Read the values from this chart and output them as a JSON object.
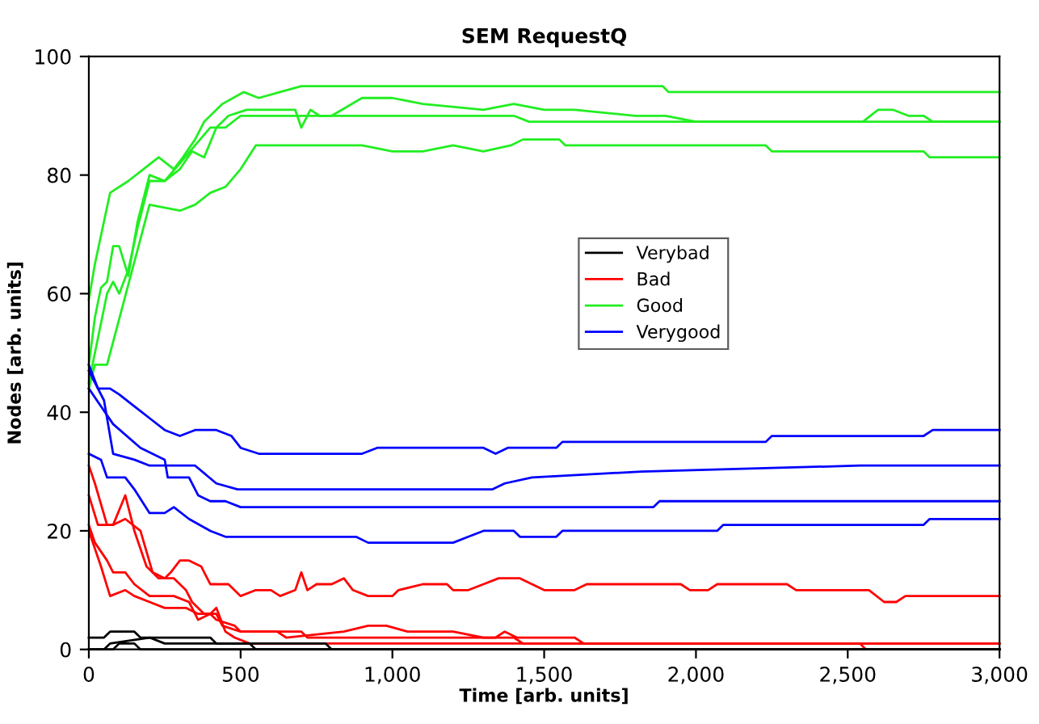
{
  "chart_data": {
    "type": "line",
    "title": "SEM RequestQ",
    "xlabel": "Time [arb. units]",
    "ylabel": "Nodes [arb. units]",
    "xlim": [
      0,
      3000
    ],
    "ylim": [
      0,
      100
    ],
    "xticks": [
      0,
      500,
      {
        "value": 1000,
        "label": "1,000"
      },
      {
        "value": 1500,
        "label": "1,500"
      },
      {
        "value": 2000,
        "label": "2,000"
      },
      {
        "value": 2500,
        "label": "2,500"
      },
      {
        "value": 3000,
        "label": "3,000"
      }
    ],
    "yticks": [
      0,
      20,
      40,
      60,
      80,
      100
    ],
    "grid": false,
    "legend": "center",
    "marker": "none",
    "line_style": "solid",
    "series": [
      {
        "name": "Verybad",
        "color": "#000000",
        "x": [
          0,
          50,
          70,
          150,
          170,
          400,
          420,
          530,
          550,
          3000
        ],
        "values": [
          2,
          2,
          3,
          3,
          2,
          2,
          1,
          1,
          0,
          0
        ]
      },
      {
        "color": "#000000",
        "x": [
          0,
          50,
          70,
          200,
          250,
          780,
          800,
          3000
        ],
        "values": [
          0,
          0,
          1,
          2,
          1,
          1,
          0,
          0
        ]
      },
      {
        "color": "#000000",
        "x": [
          0,
          80,
          100,
          150,
          170,
          3000
        ],
        "values": [
          0,
          0,
          1,
          1,
          0,
          0
        ]
      },
      {
        "name": "Bad",
        "color": "#ff0000",
        "x": [
          0,
          20,
          60,
          80,
          120,
          170,
          210,
          250,
          270,
          300,
          330,
          370,
          400,
          460,
          500,
          550,
          600,
          630,
          680,
          700,
          720,
          750,
          800,
          840,
          870,
          920,
          1000,
          1020,
          1100,
          1180,
          1200,
          1250,
          1300,
          1350,
          1420,
          1460,
          1500,
          1600,
          1640,
          1950,
          1980,
          2040,
          2070,
          2300,
          2330,
          2570,
          2620,
          2660,
          2690,
          3000
        ],
        "values": [
          31,
          28,
          21,
          21,
          22,
          20,
          13,
          12,
          13,
          15,
          15,
          14,
          11,
          11,
          9,
          10,
          10,
          9,
          10,
          13,
          10,
          11,
          11,
          12,
          10,
          9,
          9,
          10,
          11,
          11,
          10,
          10,
          11,
          12,
          12,
          11,
          10,
          10,
          11,
          11,
          10,
          10,
          11,
          11,
          10,
          10,
          8,
          8,
          9,
          9
        ]
      },
      {
        "color": "#ff0000",
        "x": [
          0,
          30,
          80,
          120,
          150,
          190,
          230,
          280,
          320,
          340,
          380,
          420,
          440,
          500,
          620,
          650,
          840,
          920,
          980,
          1050,
          1200,
          1300,
          1340,
          1370,
          1410,
          1600,
          1630,
          3000
        ],
        "values": [
          26,
          21,
          21,
          26,
          20,
          14,
          12,
          12,
          10,
          8,
          6,
          6,
          4,
          3,
          3,
          2,
          3,
          4,
          4,
          3,
          3,
          2,
          2,
          3,
          2,
          2,
          1,
          1
        ]
      },
      {
        "color": "#ff0000",
        "x": [
          0,
          20,
          60,
          80,
          120,
          150,
          200,
          280,
          330,
          360,
          400,
          420,
          450,
          480,
          530,
          2540,
          2560,
          3000
        ],
        "values": [
          21,
          18,
          15,
          13,
          13,
          11,
          9,
          9,
          8,
          5,
          6,
          7,
          3,
          2,
          1,
          1,
          0,
          0
        ]
      },
      {
        "color": "#ff0000",
        "x": [
          0,
          40,
          70,
          120,
          150,
          200,
          250,
          320,
          360,
          400,
          420,
          480,
          500,
          700,
          720,
          1400,
          1430,
          3000
        ],
        "values": [
          20,
          14,
          9,
          10,
          9,
          8,
          7,
          7,
          6,
          6,
          5,
          4,
          3,
          3,
          2,
          2,
          1,
          1
        ]
      },
      {
        "name": "Good",
        "color": "#22ee22",
        "x": [
          0,
          20,
          70,
          130,
          180,
          230,
          280,
          310,
          350,
          380,
          440,
          510,
          560,
          630,
          700,
          1890,
          1910,
          3000
        ],
        "values": [
          59,
          65,
          77,
          79,
          81,
          83,
          81,
          83,
          86,
          89,
          92,
          94,
          93,
          94,
          95,
          95,
          94,
          94
        ]
      },
      {
        "color": "#22ee22",
        "x": [
          0,
          20,
          40,
          60,
          80,
          100,
          130,
          160,
          200,
          250,
          300,
          340,
          380,
          420,
          460,
          520,
          680,
          700,
          730,
          760,
          800,
          900,
          1000,
          1100,
          1300,
          1400,
          1500,
          1600,
          1800,
          1900,
          2000,
          3000
        ],
        "values": [
          48,
          56,
          61,
          62,
          68,
          68,
          63,
          72,
          80,
          79,
          81,
          84,
          83,
          88,
          90,
          91,
          91,
          88,
          91,
          90,
          90,
          93,
          93,
          92,
          91,
          92,
          91,
          91,
          90,
          90,
          89,
          89
        ]
      },
      {
        "color": "#22ee22",
        "x": [
          0,
          20,
          60,
          80,
          100,
          130,
          160,
          200,
          250,
          300,
          350,
          400,
          450,
          500,
          1400,
          1450,
          2550,
          2600,
          2650,
          2700,
          2750,
          2780,
          3000
        ],
        "values": [
          45,
          50,
          60,
          62,
          60,
          64,
          71,
          79,
          79,
          82,
          85,
          88,
          88,
          90,
          90,
          89,
          89,
          91,
          91,
          90,
          90,
          89,
          89
        ]
      },
      {
        "color": "#22ee22",
        "x": [
          0,
          20,
          60,
          200,
          300,
          350,
          400,
          450,
          500,
          550,
          900,
          1000,
          1100,
          1200,
          1300,
          1390,
          1430,
          1550,
          1570,
          2230,
          2250,
          2750,
          2770,
          3000
        ],
        "values": [
          44,
          48,
          48,
          75,
          74,
          75,
          77,
          78,
          81,
          85,
          85,
          84,
          84,
          85,
          84,
          85,
          86,
          86,
          85,
          85,
          84,
          84,
          83,
          83
        ]
      },
      {
        "name": "Verygood",
        "color": "#0000ff",
        "x": [
          0,
          30,
          70,
          100,
          150,
          200,
          250,
          300,
          350,
          420,
          470,
          500,
          560,
          900,
          950,
          1300,
          1340,
          1380,
          1540,
          1560,
          2230,
          2250,
          2750,
          2780,
          3000
        ],
        "values": [
          48,
          44,
          44,
          43,
          41,
          39,
          37,
          36,
          37,
          37,
          36,
          34,
          33,
          33,
          34,
          34,
          33,
          34,
          34,
          35,
          35,
          36,
          36,
          37,
          37
        ]
      },
      {
        "color": "#0000ff",
        "x": [
          0,
          50,
          80,
          150,
          200,
          350,
          420,
          490,
          1330,
          1370,
          1460,
          1820,
          2540,
          3000
        ],
        "values": [
          47,
          42,
          33,
          32,
          31,
          31,
          28,
          27,
          27,
          28,
          29,
          30,
          31,
          31
        ]
      },
      {
        "color": "#0000ff",
        "x": [
          0,
          80,
          170,
          250,
          260,
          330,
          360,
          400,
          450,
          500,
          1860,
          1880,
          3000
        ],
        "values": [
          44,
          38,
          34,
          32,
          29,
          29,
          26,
          25,
          25,
          24,
          24,
          25,
          25
        ]
      },
      {
        "color": "#0000ff",
        "x": [
          0,
          40,
          60,
          120,
          150,
          200,
          250,
          280,
          330,
          400,
          450,
          880,
          920,
          1200,
          1250,
          1300,
          1400,
          1420,
          1540,
          1560,
          2070,
          2090,
          2750,
          2770,
          3000
        ],
        "values": [
          33,
          32,
          29,
          29,
          27,
          23,
          23,
          24,
          22,
          20,
          19,
          19,
          18,
          18,
          19,
          20,
          20,
          19,
          19,
          20,
          20,
          21,
          21,
          22,
          22
        ]
      }
    ]
  }
}
